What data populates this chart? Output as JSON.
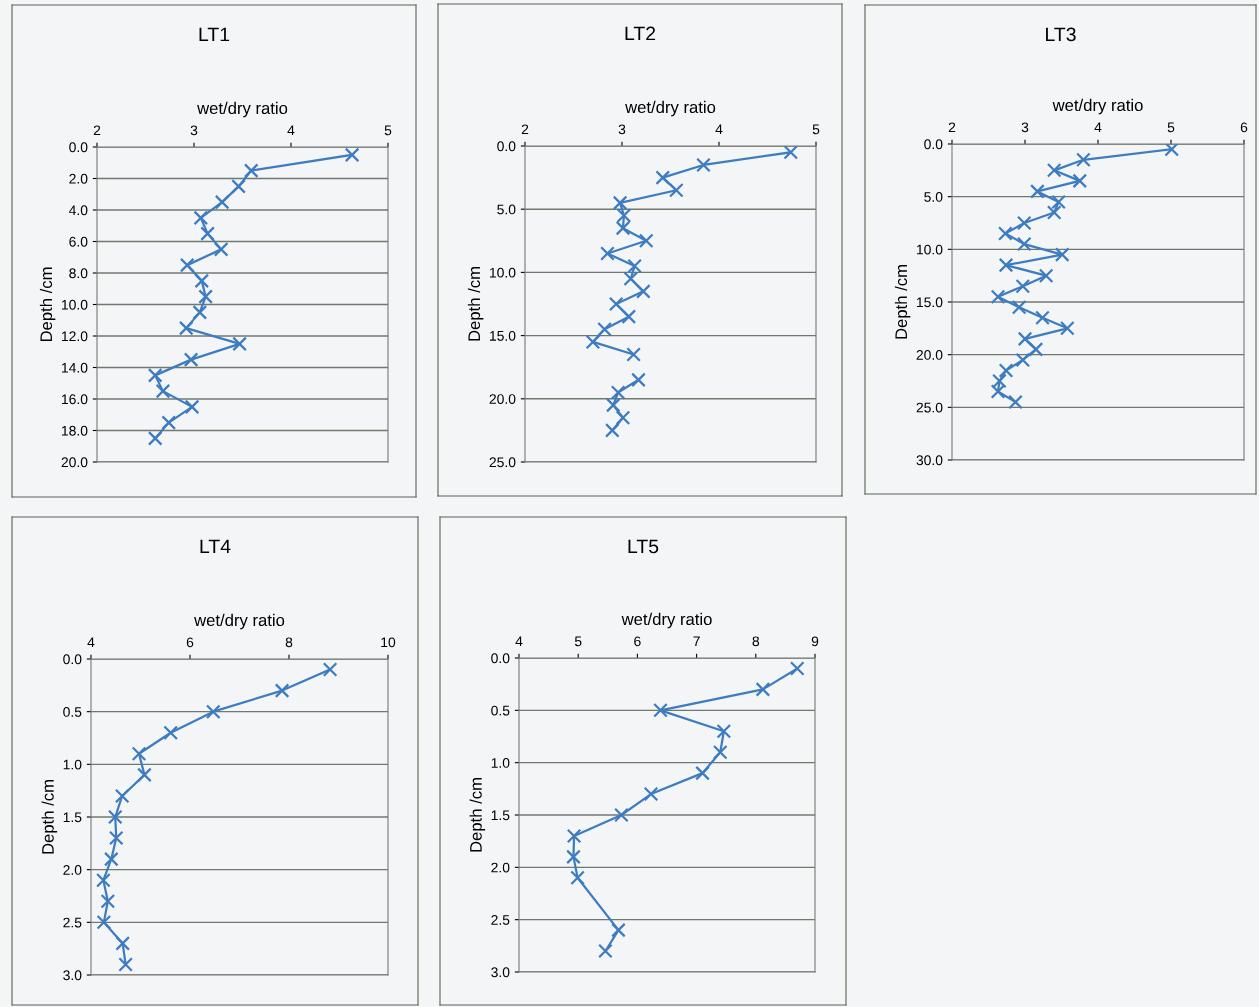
{
  "chart_data": [
    {
      "type": "line",
      "title": "LT1",
      "xlabel": "wet/dry ratio",
      "ylabel": "Depth /cm",
      "marker": "cross",
      "grid": "y",
      "xlim": [
        2,
        5
      ],
      "xticks": [
        2,
        3,
        4,
        5
      ],
      "ylim": [
        20,
        0
      ],
      "yticks": [
        {
          "value": 0,
          "label": "0.0"
        },
        {
          "value": 2,
          "label": "2.0"
        },
        {
          "value": 4,
          "label": "4.0"
        },
        {
          "value": 6,
          "label": "6.0"
        },
        {
          "value": 8,
          "label": "8.0"
        },
        {
          "value": 10,
          "label": "10.0"
        },
        {
          "value": 12,
          "label": "12.0"
        },
        {
          "value": 14,
          "label": "14.0"
        },
        {
          "value": 16,
          "label": "16.0"
        },
        {
          "value": 18,
          "label": "18.0"
        },
        {
          "value": 20,
          "label": "20.0"
        }
      ],
      "series": [
        {
          "color": "#3d7cc0",
          "x": [
            4.63,
            3.59,
            3.46,
            3.29,
            3.07,
            3.14,
            3.28,
            2.93,
            3.08,
            3.12,
            3.06,
            2.92,
            3.47,
            2.97,
            2.6,
            2.68,
            2.98,
            2.74,
            2.6
          ],
          "values": [
            0.5,
            1.5,
            2.5,
            3.5,
            4.5,
            5.5,
            6.5,
            7.5,
            8.5,
            9.5,
            10.5,
            11.5,
            12.5,
            13.5,
            14.5,
            15.5,
            16.5,
            17.5,
            18.5
          ]
        }
      ]
    },
    {
      "type": "line",
      "title": "LT2",
      "xlabel": "wet/dry ratio",
      "ylabel": "Depth /cm",
      "marker": "cross",
      "grid": "y",
      "xlim": [
        2,
        5
      ],
      "xticks": [
        2,
        3,
        4,
        5
      ],
      "ylim": [
        25,
        0
      ],
      "yticks": [
        {
          "value": 0,
          "label": "0.0"
        },
        {
          "value": 5,
          "label": "5.0"
        },
        {
          "value": 10,
          "label": "10.0"
        },
        {
          "value": 15,
          "label": "15.0"
        },
        {
          "value": 20,
          "label": "20.0"
        },
        {
          "value": 25,
          "label": "25.0"
        }
      ],
      "series": [
        {
          "color": "#3d7cc0",
          "x": [
            4.74,
            3.84,
            3.42,
            3.56,
            2.98,
            3.02,
            3.01,
            3.25,
            2.85,
            3.13,
            3.09,
            3.22,
            2.94,
            3.07,
            2.82,
            2.7,
            3.12,
            null,
            3.17,
            2.96,
            2.91,
            3.01,
            2.9
          ],
          "values": [
            0.5,
            1.5,
            2.5,
            3.5,
            4.5,
            5.5,
            6.5,
            7.5,
            8.5,
            9.5,
            10.5,
            11.5,
            12.5,
            13.5,
            14.5,
            15.5,
            16.5,
            null,
            18.5,
            19.5,
            20.5,
            21.5,
            22.5
          ]
        }
      ]
    },
    {
      "type": "line",
      "title": "LT3",
      "xlabel": "wet/dry ratio",
      "ylabel": "Depth /cm",
      "marker": "cross",
      "grid": "y",
      "xlim": [
        2,
        6
      ],
      "xticks": [
        2,
        3,
        4,
        5,
        6
      ],
      "ylim": [
        30,
        0
      ],
      "yticks": [
        {
          "value": 0,
          "label": "0.0"
        },
        {
          "value": 5,
          "label": "5.0"
        },
        {
          "value": 10,
          "label": "10.0"
        },
        {
          "value": 15,
          "label": "15.0"
        },
        {
          "value": 20,
          "label": "20.0"
        },
        {
          "value": 25,
          "label": "25.0"
        },
        {
          "value": 30,
          "label": "30.0"
        }
      ],
      "series": [
        {
          "color": "#3d7cc0",
          "x": [
            5.01,
            3.8,
            3.4,
            3.75,
            3.17,
            3.46,
            3.4,
            2.99,
            2.73,
            2.99,
            3.51,
            2.74,
            3.29,
            2.97,
            2.63,
            2.92,
            3.24,
            3.58,
            3.0,
            3.15,
            2.97,
            2.74,
            2.65,
            2.63,
            2.87
          ],
          "values": [
            0.5,
            1.5,
            2.5,
            3.5,
            4.5,
            5.5,
            6.5,
            7.5,
            8.5,
            9.5,
            10.5,
            11.5,
            12.5,
            13.5,
            14.5,
            15.5,
            16.5,
            17.5,
            18.5,
            19.5,
            20.5,
            21.5,
            22.5,
            23.5,
            24.5
          ]
        }
      ]
    },
    {
      "type": "line",
      "title": "LT4",
      "xlabel": "wet/dry ratio",
      "ylabel": "Depth /cm",
      "marker": "cross",
      "grid": "y",
      "xlim": [
        4,
        10
      ],
      "xticks": [
        4,
        6,
        8,
        10
      ],
      "ylim": [
        3,
        0
      ],
      "yticks": [
        {
          "value": 0,
          "label": "0.0"
        },
        {
          "value": 0.5,
          "label": "0.5"
        },
        {
          "value": 1,
          "label": "1.0"
        },
        {
          "value": 1.5,
          "label": "1.5"
        },
        {
          "value": 2,
          "label": "2.0"
        },
        {
          "value": 2.5,
          "label": "2.5"
        },
        {
          "value": 3,
          "label": "3.0"
        }
      ],
      "series": [
        {
          "color": "#3d7cc0",
          "x": [
            8.83,
            7.86,
            6.47,
            5.61,
            4.97,
            5.08,
            4.63,
            4.49,
            4.51,
            4.41,
            4.25,
            4.34,
            4.26,
            4.64,
            4.7
          ],
          "values": [
            0.1,
            0.3,
            0.5,
            0.7,
            0.9,
            1.1,
            1.3,
            1.5,
            1.7,
            1.9,
            2.1,
            2.3,
            2.5,
            2.7,
            2.9
          ]
        }
      ]
    },
    {
      "type": "line",
      "title": "LT5",
      "xlabel": "wet/dry ratio",
      "ylabel": "Depth /cm",
      "marker": "cross",
      "grid": "y",
      "xlim": [
        4,
        9
      ],
      "xticks": [
        4,
        5,
        6,
        7,
        8,
        9
      ],
      "ylim": [
        3,
        0
      ],
      "yticks": [
        {
          "value": 0,
          "label": "0.0"
        },
        {
          "value": 0.5,
          "label": "0.5"
        },
        {
          "value": 1,
          "label": "1.0"
        },
        {
          "value": 1.5,
          "label": "1.5"
        },
        {
          "value": 2,
          "label": "2.0"
        },
        {
          "value": 2.5,
          "label": "2.5"
        },
        {
          "value": 3,
          "label": "3.0"
        }
      ],
      "series": [
        {
          "color": "#3d7cc0",
          "x": [
            8.7,
            8.12,
            6.39,
            7.46,
            7.4,
            7.1,
            6.23,
            5.73,
            4.93,
            4.92,
            4.99,
            5.68,
            5.46
          ],
          "values": [
            0.1,
            0.3,
            0.5,
            0.7,
            0.9,
            1.1,
            1.3,
            1.5,
            1.7,
            1.9,
            2.1,
            2.6,
            2.8
          ]
        }
      ]
    }
  ]
}
